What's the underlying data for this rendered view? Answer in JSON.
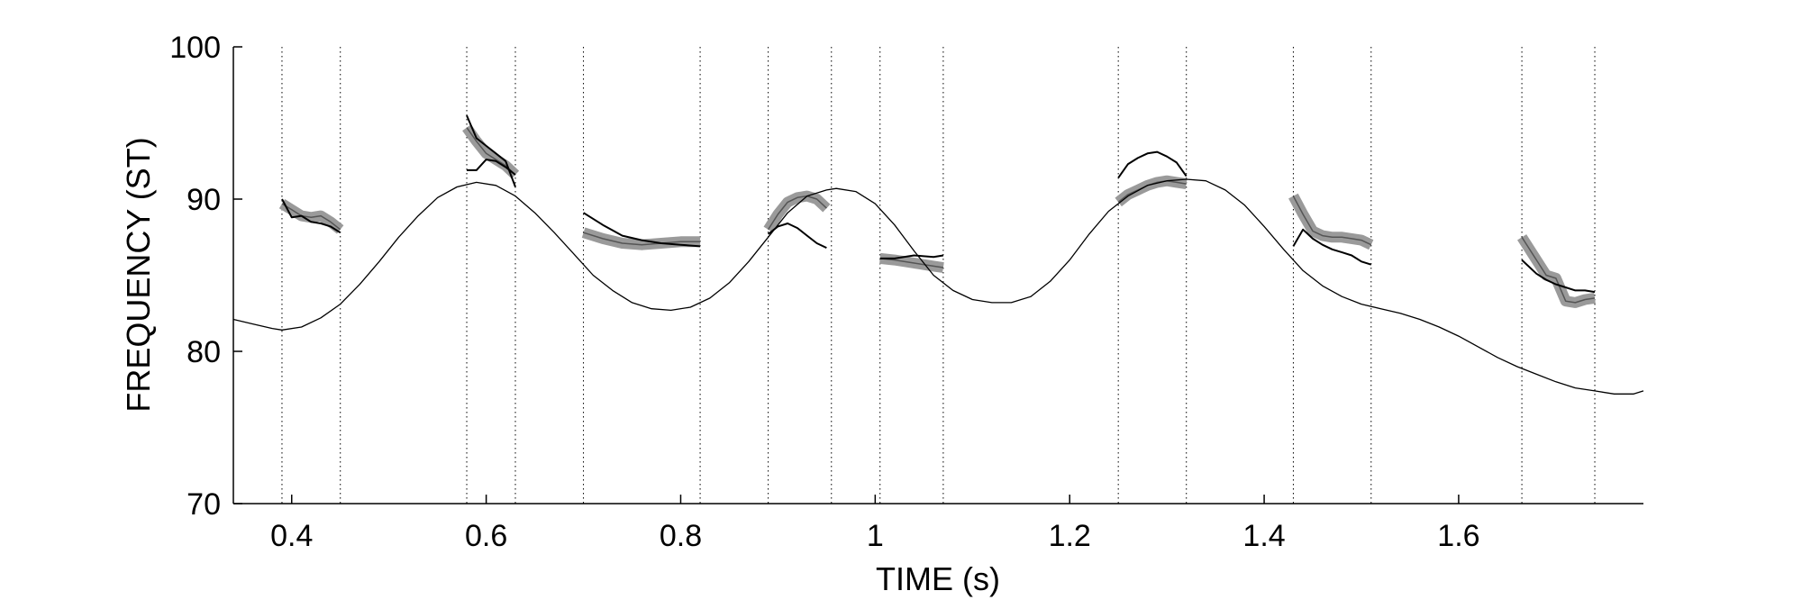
{
  "chart_data": {
    "type": "line",
    "xlabel": "TIME (s)",
    "ylabel": "FREQUENCY (ST)",
    "xlim": [
      0.34,
      1.79
    ],
    "ylim": [
      70,
      100
    ],
    "xticks": [
      0.4,
      0.6,
      0.8,
      1,
      1.2,
      1.4,
      1.6
    ],
    "xtick_labels": [
      "0.4",
      "0.6",
      "0.8",
      "1",
      "1.2",
      "1.4",
      "1.6"
    ],
    "yticks": [
      70,
      80,
      90,
      100
    ],
    "ytick_labels": [
      "70",
      "80",
      "90",
      "100"
    ],
    "grid": false,
    "colors": {
      "contour": "#000000",
      "band": "#9a9a9a",
      "band_center": "#555555",
      "segment": "#000000",
      "boundary": "#000000"
    },
    "segment_boundaries": [
      0.39,
      0.45,
      0.58,
      0.63,
      0.7,
      0.82,
      0.89,
      0.955,
      1.005,
      1.07,
      1.25,
      1.32,
      1.43,
      1.51,
      1.665,
      1.74
    ],
    "contour": {
      "x": [
        0.34,
        0.36,
        0.38,
        0.39,
        0.41,
        0.43,
        0.45,
        0.47,
        0.49,
        0.51,
        0.53,
        0.55,
        0.57,
        0.59,
        0.61,
        0.63,
        0.65,
        0.67,
        0.69,
        0.71,
        0.73,
        0.75,
        0.77,
        0.79,
        0.81,
        0.83,
        0.85,
        0.87,
        0.89,
        0.91,
        0.93,
        0.95,
        0.96,
        0.98,
        1.0,
        1.02,
        1.04,
        1.06,
        1.08,
        1.1,
        1.12,
        1.14,
        1.16,
        1.18,
        1.2,
        1.22,
        1.24,
        1.26,
        1.28,
        1.3,
        1.32,
        1.34,
        1.36,
        1.38,
        1.4,
        1.42,
        1.44,
        1.46,
        1.48,
        1.5,
        1.52,
        1.54,
        1.56,
        1.58,
        1.6,
        1.62,
        1.64,
        1.66,
        1.68,
        1.7,
        1.72,
        1.74,
        1.76,
        1.78,
        1.79
      ],
      "y": [
        82.1,
        81.8,
        81.5,
        81.4,
        81.6,
        82.2,
        83.1,
        84.4,
        85.9,
        87.5,
        88.9,
        90.1,
        90.8,
        91.1,
        90.9,
        90.2,
        89.1,
        87.8,
        86.4,
        85.0,
        84.0,
        83.2,
        82.8,
        82.7,
        82.9,
        83.5,
        84.5,
        85.9,
        87.5,
        89.1,
        90.2,
        90.6,
        90.7,
        90.5,
        89.7,
        88.3,
        86.6,
        85.0,
        84.0,
        83.4,
        83.2,
        83.2,
        83.6,
        84.6,
        86.0,
        87.7,
        89.2,
        90.2,
        90.9,
        91.2,
        91.3,
        91.2,
        90.6,
        89.6,
        88.2,
        86.7,
        85.3,
        84.3,
        83.6,
        83.1,
        82.8,
        82.5,
        82.1,
        81.6,
        81.0,
        80.3,
        79.6,
        79.0,
        78.5,
        78.0,
        77.6,
        77.4,
        77.2,
        77.2,
        77.4
      ]
    },
    "bands": [
      {
        "x": [
          0.39,
          0.4,
          0.41,
          0.42,
          0.43,
          0.44,
          0.45
        ],
        "y": [
          89.7,
          89.3,
          88.9,
          88.8,
          88.9,
          88.5,
          88.0
        ]
      },
      {
        "x": [
          0.58,
          0.59,
          0.6,
          0.61,
          0.62,
          0.63
        ],
        "y": [
          94.7,
          93.8,
          93.0,
          92.6,
          92.2,
          91.6
        ]
      },
      {
        "x": [
          0.7,
          0.72,
          0.74,
          0.76,
          0.78,
          0.8,
          0.82
        ],
        "y": [
          87.8,
          87.4,
          87.1,
          87.0,
          87.1,
          87.2,
          87.2
        ]
      },
      {
        "x": [
          0.89,
          0.9,
          0.91,
          0.92,
          0.93,
          0.94,
          0.95
        ],
        "y": [
          88.0,
          89.0,
          89.8,
          90.1,
          90.2,
          90.0,
          89.4
        ]
      },
      {
        "x": [
          1.005,
          1.02,
          1.04,
          1.06,
          1.07
        ],
        "y": [
          86.1,
          86.0,
          85.8,
          85.6,
          85.5
        ]
      },
      {
        "x": [
          1.25,
          1.26,
          1.27,
          1.28,
          1.29,
          1.3,
          1.31,
          1.32
        ],
        "y": [
          89.8,
          90.3,
          90.6,
          90.9,
          91.1,
          91.2,
          91.1,
          91.0
        ]
      },
      {
        "x": [
          1.43,
          1.44,
          1.45,
          1.46,
          1.47,
          1.48,
          1.49,
          1.5,
          1.51
        ],
        "y": [
          90.2,
          89.0,
          87.9,
          87.6,
          87.5,
          87.5,
          87.4,
          87.3,
          87.0
        ]
      },
      {
        "x": [
          1.665,
          1.68,
          1.69,
          1.7,
          1.71,
          1.72,
          1.73,
          1.74
        ],
        "y": [
          87.5,
          86.0,
          85.0,
          84.8,
          83.3,
          83.2,
          83.4,
          83.5
        ]
      }
    ],
    "segments": [
      {
        "x": [
          0.39,
          0.4,
          0.41,
          0.42,
          0.43,
          0.44,
          0.45
        ],
        "y": [
          90.0,
          88.8,
          88.9,
          88.5,
          88.4,
          88.2,
          87.8
        ]
      },
      {
        "x": [
          0.58,
          0.59,
          0.6,
          0.61,
          0.62,
          0.63
        ],
        "y": [
          91.9,
          91.9,
          92.6,
          92.5,
          92.1,
          91.6
        ]
      },
      {
        "x": [
          0.7,
          0.72,
          0.74,
          0.76,
          0.78,
          0.8,
          0.82
        ],
        "y": [
          89.1,
          88.3,
          87.6,
          87.3,
          87.1,
          87.0,
          86.9
        ]
      },
      {
        "x": [
          0.89,
          0.9,
          0.91,
          0.92,
          0.93,
          0.94,
          0.95
        ],
        "y": [
          87.7,
          88.2,
          88.4,
          88.1,
          87.6,
          87.1,
          86.8
        ]
      },
      {
        "x": [
          1.005,
          1.02,
          1.04,
          1.06,
          1.07
        ],
        "y": [
          86.1,
          86.1,
          86.3,
          86.2,
          86.3
        ]
      },
      {
        "x": [
          1.25,
          1.26,
          1.27,
          1.28,
          1.29,
          1.3,
          1.31,
          1.32
        ],
        "y": [
          91.4,
          92.3,
          92.7,
          93.0,
          93.1,
          92.8,
          92.4,
          91.5
        ]
      },
      {
        "x": [
          1.43,
          1.44,
          1.45,
          1.46,
          1.47,
          1.48,
          1.49,
          1.5,
          1.51
        ],
        "y": [
          86.9,
          88.0,
          87.4,
          87.0,
          86.7,
          86.5,
          86.3,
          85.9,
          85.7
        ]
      },
      {
        "x": [
          1.665,
          1.68,
          1.69,
          1.7,
          1.71,
          1.72,
          1.73,
          1.74
        ],
        "y": [
          86.0,
          85.1,
          84.7,
          84.4,
          84.2,
          84.0,
          84.0,
          83.9
        ]
      },
      {
        "x": [
          0.58,
          0.59,
          0.6,
          0.61,
          0.62,
          0.63
        ],
        "y": [
          95.5,
          94.0,
          93.5,
          93.0,
          92.5,
          90.8
        ]
      }
    ]
  }
}
